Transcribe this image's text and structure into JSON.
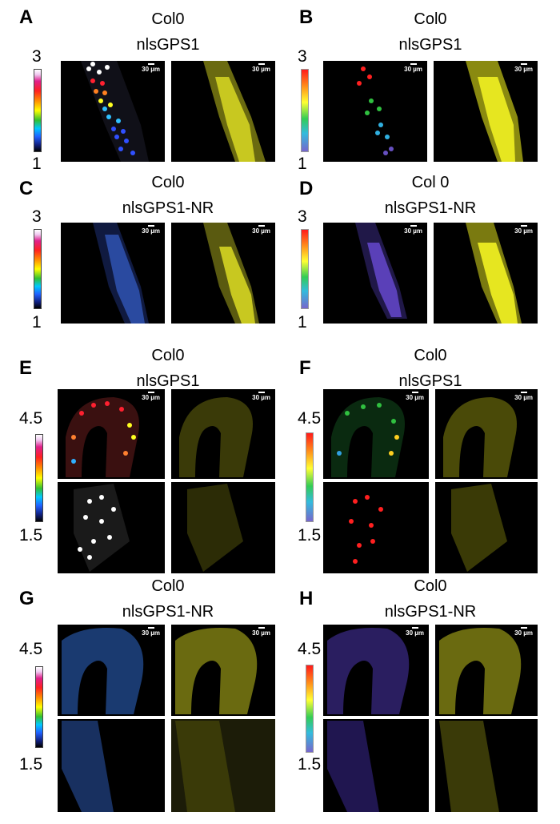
{
  "panels": [
    {
      "id": "A",
      "label": "A",
      "line1": "Col0",
      "line2": "nlsGPS1",
      "scale_top": "3",
      "scale_bottom": "1",
      "colorbar": "spectrum-white-black",
      "scalebar": "30 µm"
    },
    {
      "id": "B",
      "label": "B",
      "line1": "Col0",
      "line2": "nlsGPS1",
      "scale_top": "3",
      "scale_bottom": "1",
      "colorbar": "red-yellow-green-blue-violet",
      "scalebar": "30 µm"
    },
    {
      "id": "C",
      "label": "C",
      "line1": "Col0",
      "line2": "nlsGPS1-NR",
      "scale_top": "3",
      "scale_bottom": "1",
      "colorbar": "spectrum-white-black",
      "scalebar": "30 µm"
    },
    {
      "id": "D",
      "label": "D",
      "line1": "Col 0",
      "line2": "nlsGPS1-NR",
      "scale_top": "3",
      "scale_bottom": "1",
      "colorbar": "red-yellow-green-blue-violet",
      "scalebar": "30 µm"
    },
    {
      "id": "E",
      "label": "E",
      "line1": "Col0",
      "line2": "nlsGPS1",
      "scale_top": "4.5",
      "scale_bottom": "1.5",
      "colorbar": "spectrum-white-black",
      "scalebar": "30 µm"
    },
    {
      "id": "F",
      "label": "F",
      "line1": "Col0",
      "line2": "nlsGPS1",
      "scale_top": "4.5",
      "scale_bottom": "1.5",
      "colorbar": "red-yellow-green-blue-violet",
      "scalebar": "30 µm"
    },
    {
      "id": "G",
      "label": "G",
      "line1": "Col0",
      "line2": "nlsGPS1-NR",
      "scale_top": "4.5",
      "scale_bottom": "1.5",
      "colorbar": "spectrum-white-black",
      "scalebar": "30 µm"
    },
    {
      "id": "H",
      "label": "H",
      "line1": "Col0",
      "line2": "nlsGPS1-NR",
      "scale_top": "4.5",
      "scale_bottom": "1.5",
      "colorbar": "red-yellow-green-blue-violet",
      "scalebar": "30 µm"
    }
  ],
  "colors": {
    "background": "#000000",
    "yellow_channel": "#e8e820"
  }
}
